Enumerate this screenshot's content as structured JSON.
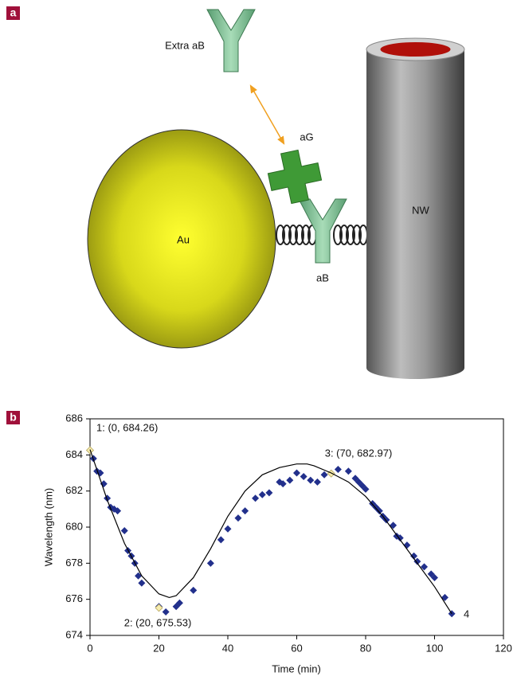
{
  "panel_a": {
    "label": "a",
    "labels": {
      "extra_ab": "Extra aB",
      "ag": "aG",
      "au": "Au",
      "nw": "NW",
      "ab": "aB"
    }
  },
  "panel_b_label": "b",
  "chart_data": {
    "type": "scatter",
    "x_label": "Time (min)",
    "y_label": "Wavelength (nm)",
    "xlim": [
      0,
      120
    ],
    "xticks": [
      0,
      20,
      40,
      60,
      80,
      100,
      120
    ],
    "ylim": [
      674,
      686
    ],
    "yticks": [
      674,
      676,
      678,
      680,
      682,
      684,
      686
    ],
    "series": [
      {
        "color": "#22308c",
        "marker": "diamond",
        "x": [
          1,
          2,
          3,
          4,
          5,
          6,
          7,
          8,
          10,
          11,
          12,
          13,
          14,
          15,
          20,
          22,
          25,
          26,
          30,
          35,
          38,
          40,
          43,
          45,
          48,
          50,
          52,
          55,
          56,
          58,
          60,
          62,
          64,
          66,
          68,
          72,
          75,
          77,
          78,
          79,
          80,
          82,
          83,
          84,
          85,
          86,
          88,
          89,
          90,
          92,
          94,
          95,
          97,
          99,
          100,
          103,
          105
        ],
        "values": [
          683.8,
          683.1,
          683.0,
          682.4,
          681.6,
          681.1,
          681.0,
          680.9,
          679.8,
          678.7,
          678.4,
          678.0,
          677.3,
          676.9,
          675.6,
          675.3,
          675.6,
          675.8,
          676.5,
          678.0,
          679.3,
          679.9,
          680.5,
          680.9,
          681.6,
          681.8,
          681.9,
          682.5,
          682.4,
          682.6,
          683.0,
          682.8,
          682.6,
          682.5,
          682.9,
          683.2,
          683.1,
          682.7,
          682.5,
          682.3,
          682.1,
          681.3,
          681.1,
          680.9,
          680.6,
          680.4,
          680.1,
          679.5,
          679.4,
          679.0,
          678.4,
          678.1,
          677.8,
          677.4,
          677.2,
          676.1,
          675.2
        ]
      },
      {
        "color": "#f6ecb0",
        "marker": "diamond",
        "x": [
          0,
          20,
          70
        ],
        "values": [
          684.26,
          675.53,
          682.97
        ]
      },
      {
        "color": "#000000",
        "marker": "line",
        "x": [
          0,
          5,
          10,
          15,
          20,
          23,
          25,
          30,
          35,
          40,
          45,
          50,
          55,
          60,
          63,
          65,
          70,
          75,
          80,
          85,
          90,
          95,
          100,
          105
        ],
        "values": [
          684.3,
          681.5,
          679.1,
          677.3,
          676.3,
          676.1,
          676.2,
          677.2,
          678.8,
          680.6,
          682.0,
          682.9,
          683.3,
          683.5,
          683.5,
          683.4,
          683.0,
          682.5,
          681.7,
          680.6,
          679.3,
          678.0,
          676.7,
          675.2
        ]
      }
    ],
    "annotations": [
      "1: (0, 684.26)",
      "2: (20, 675.53)",
      "3: (70, 682.97)",
      "4"
    ]
  }
}
